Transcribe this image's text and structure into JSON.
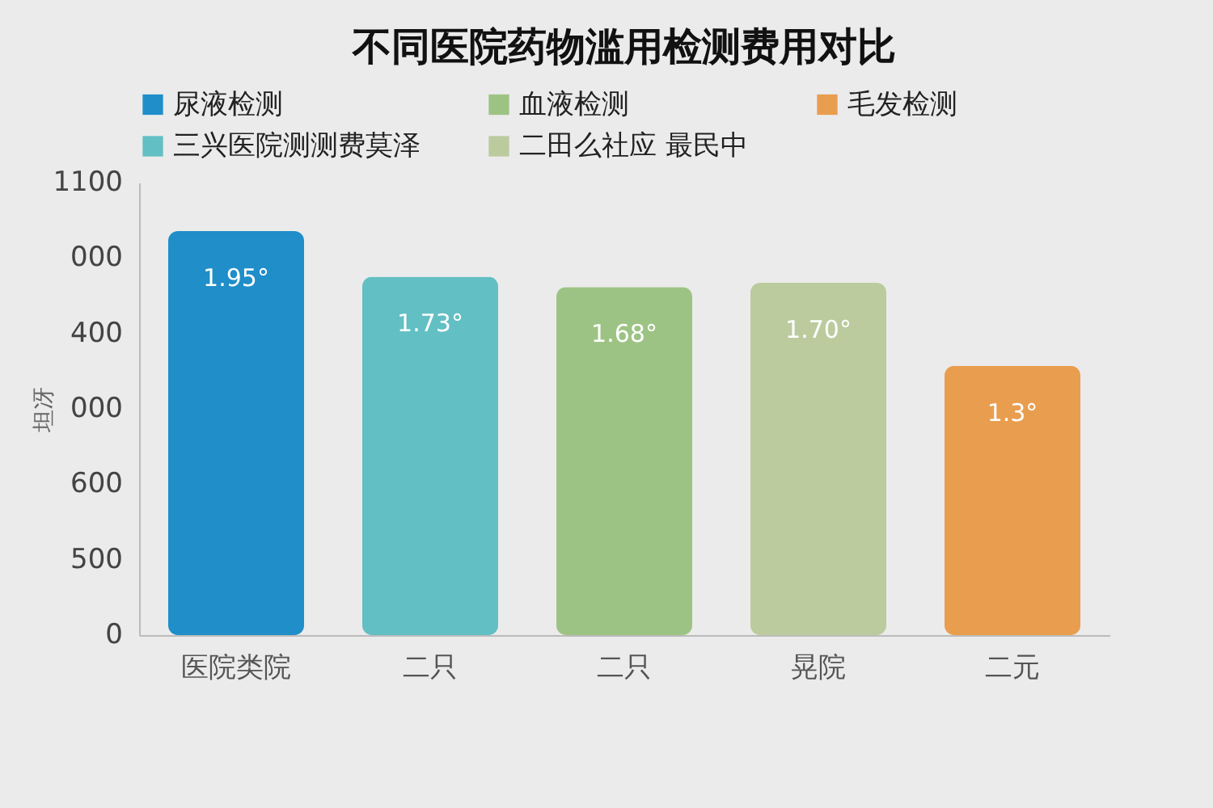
{
  "chart_data": {
    "type": "bar",
    "title": "不同医院药物滥用检测费用对比",
    "ylabel": "坦冴",
    "categories": [
      "医院类院",
      "二只",
      "二只",
      "晃院",
      "二元"
    ],
    "series": [
      {
        "name": "尿液检测",
        "color": "#1f8ec9",
        "values": [
          1.95,
          null,
          null,
          null,
          null
        ],
        "value_labels": [
          "1.95°",
          null,
          null,
          null,
          null
        ]
      },
      {
        "name": "血液检测",
        "color": "#9dc384",
        "values": [
          null,
          null,
          1.68,
          null,
          null
        ],
        "value_labels": [
          null,
          null,
          "1.68°",
          null,
          null
        ]
      },
      {
        "name": "毛发检测",
        "color": "#e99d4e",
        "values": [
          null,
          null,
          null,
          null,
          1.3
        ],
        "value_labels": [
          null,
          null,
          null,
          null,
          "1.3°"
        ]
      },
      {
        "name": "三兴医院测测费莫泽",
        "color": "#62bfc4",
        "values": [
          null,
          1.73,
          null,
          null,
          null
        ],
        "value_labels": [
          null,
          "1.73°",
          null,
          null,
          null
        ]
      },
      {
        "name": "二田么社应 最民中",
        "color": "#bccb9e",
        "values": [
          null,
          null,
          null,
          1.7,
          null
        ],
        "value_labels": [
          null,
          null,
          null,
          "1.70°",
          null
        ]
      }
    ],
    "annotations": [
      "1100",
      "000",
      "400",
      "000",
      "600",
      "500",
      "0"
    ],
    "grid": false,
    "legend": "top"
  }
}
